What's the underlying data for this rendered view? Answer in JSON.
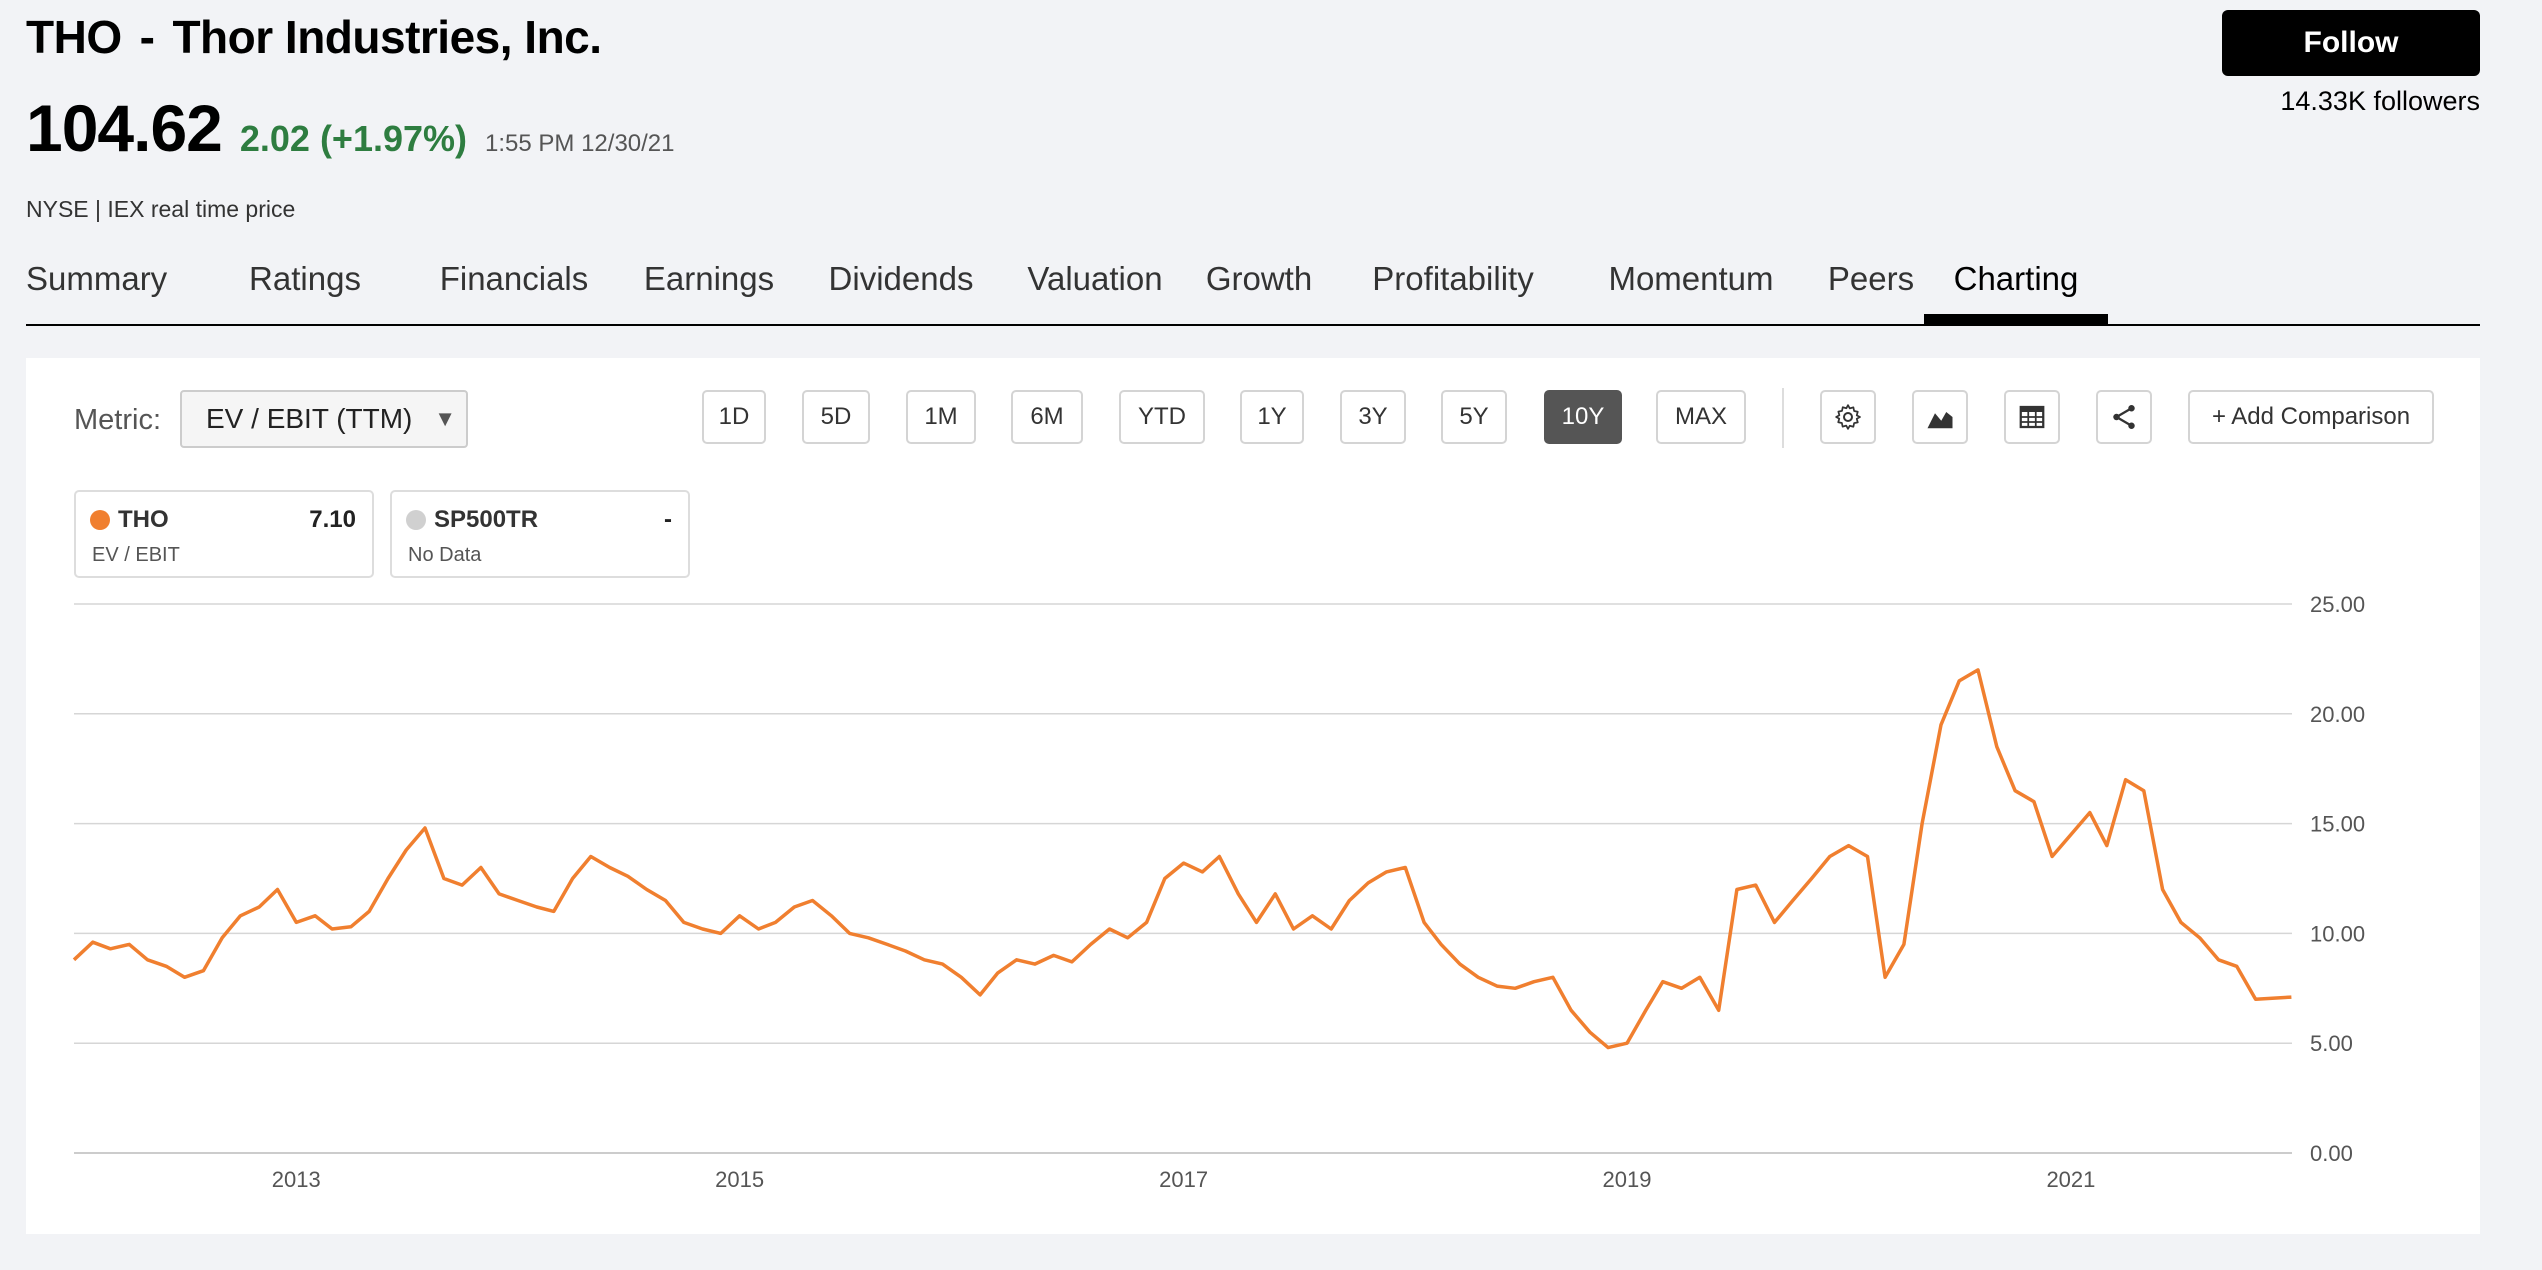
{
  "header": {
    "ticker": "THO",
    "separator": "-",
    "company": "Thor Industries, Inc.",
    "price": "104.62",
    "change": "2.02 (+1.97%)",
    "timestamp": "1:55 PM 12/30/21",
    "exchange": "NYSE | IEX real time price",
    "follow_label": "Follow",
    "followers": "14.33K followers"
  },
  "tabs": [
    {
      "label": "Summary"
    },
    {
      "label": "Ratings"
    },
    {
      "label": "Financials"
    },
    {
      "label": "Earnings"
    },
    {
      "label": "Dividends"
    },
    {
      "label": "Valuation"
    },
    {
      "label": "Growth"
    },
    {
      "label": "Profitability"
    },
    {
      "label": "Momentum"
    },
    {
      "label": "Peers"
    },
    {
      "label": "Charting",
      "active": true
    }
  ],
  "toolbar": {
    "metric_label": "Metric:",
    "metric_value": "EV / EBIT (TTM)",
    "ranges": [
      "1D",
      "5D",
      "1M",
      "6M",
      "YTD",
      "1Y",
      "3Y",
      "5Y",
      "10Y",
      "MAX"
    ],
    "active_range": "10Y",
    "icons": [
      "gear-icon",
      "area-chart-icon",
      "table-icon",
      "share-icon"
    ],
    "add_comparison": "+ Add Comparison"
  },
  "legend": [
    {
      "name": "THO",
      "value": "7.10",
      "sub": "EV / EBIT",
      "color": "#f07f2f"
    },
    {
      "name": "SP500TR",
      "value": "-",
      "sub": "No Data",
      "color": "#d0d0d0"
    }
  ],
  "chart_data": {
    "type": "line",
    "series": [
      {
        "name": "THO",
        "color": "#f07f2f",
        "points": [
          [
            "2012-01-01",
            8.8
          ],
          [
            "2012-02-01",
            9.6
          ],
          [
            "2012-03-01",
            9.3
          ],
          [
            "2012-04-01",
            9.5
          ],
          [
            "2012-05-01",
            8.8
          ],
          [
            "2012-06-01",
            8.5
          ],
          [
            "2012-07-01",
            8.0
          ],
          [
            "2012-08-01",
            8.3
          ],
          [
            "2012-09-01",
            9.8
          ],
          [
            "2012-10-01",
            10.8
          ],
          [
            "2012-11-01",
            11.2
          ],
          [
            "2012-12-01",
            12.0
          ],
          [
            "2013-01-01",
            10.5
          ],
          [
            "2013-02-01",
            10.8
          ],
          [
            "2013-03-01",
            10.2
          ],
          [
            "2013-04-01",
            10.3
          ],
          [
            "2013-05-01",
            11.0
          ],
          [
            "2013-06-01",
            12.5
          ],
          [
            "2013-07-01",
            13.8
          ],
          [
            "2013-08-01",
            14.8
          ],
          [
            "2013-09-01",
            12.5
          ],
          [
            "2013-10-01",
            12.2
          ],
          [
            "2013-11-01",
            13.0
          ],
          [
            "2013-12-01",
            11.8
          ],
          [
            "2014-01-01",
            11.5
          ],
          [
            "2014-02-01",
            11.2
          ],
          [
            "2014-03-01",
            11.0
          ],
          [
            "2014-04-01",
            12.5
          ],
          [
            "2014-05-01",
            13.5
          ],
          [
            "2014-06-01",
            13.0
          ],
          [
            "2014-07-01",
            12.6
          ],
          [
            "2014-08-01",
            12.0
          ],
          [
            "2014-09-01",
            11.5
          ],
          [
            "2014-10-01",
            10.5
          ],
          [
            "2014-11-01",
            10.2
          ],
          [
            "2014-12-01",
            10.0
          ],
          [
            "2015-01-01",
            10.8
          ],
          [
            "2015-02-01",
            10.2
          ],
          [
            "2015-03-01",
            10.5
          ],
          [
            "2015-04-01",
            11.2
          ],
          [
            "2015-05-01",
            11.5
          ],
          [
            "2015-06-01",
            10.8
          ],
          [
            "2015-07-01",
            10.0
          ],
          [
            "2015-08-01",
            9.8
          ],
          [
            "2015-09-01",
            9.5
          ],
          [
            "2015-10-01",
            9.2
          ],
          [
            "2015-11-01",
            8.8
          ],
          [
            "2015-12-01",
            8.6
          ],
          [
            "2016-01-01",
            8.0
          ],
          [
            "2016-02-01",
            7.2
          ],
          [
            "2016-03-01",
            8.2
          ],
          [
            "2016-04-01",
            8.8
          ],
          [
            "2016-05-01",
            8.6
          ],
          [
            "2016-06-01",
            9.0
          ],
          [
            "2016-07-01",
            8.7
          ],
          [
            "2016-08-01",
            9.5
          ],
          [
            "2016-09-01",
            10.2
          ],
          [
            "2016-10-01",
            9.8
          ],
          [
            "2016-11-01",
            10.5
          ],
          [
            "2016-12-01",
            12.5
          ],
          [
            "2017-01-01",
            13.2
          ],
          [
            "2017-02-01",
            12.8
          ],
          [
            "2017-03-01",
            13.5
          ],
          [
            "2017-04-01",
            11.8
          ],
          [
            "2017-05-01",
            10.5
          ],
          [
            "2017-06-01",
            11.8
          ],
          [
            "2017-07-01",
            10.2
          ],
          [
            "2017-08-01",
            10.8
          ],
          [
            "2017-09-01",
            10.2
          ],
          [
            "2017-10-01",
            11.5
          ],
          [
            "2017-11-01",
            12.3
          ],
          [
            "2017-12-01",
            12.8
          ],
          [
            "2018-01-01",
            13.0
          ],
          [
            "2018-02-01",
            10.5
          ],
          [
            "2018-03-01",
            9.5
          ],
          [
            "2018-04-01",
            8.6
          ],
          [
            "2018-05-01",
            8.0
          ],
          [
            "2018-06-01",
            7.6
          ],
          [
            "2018-07-01",
            7.5
          ],
          [
            "2018-08-01",
            7.8
          ],
          [
            "2018-09-01",
            8.0
          ],
          [
            "2018-10-01",
            6.5
          ],
          [
            "2018-11-01",
            5.5
          ],
          [
            "2018-12-01",
            4.8
          ],
          [
            "2019-01-01",
            5.0
          ],
          [
            "2019-02-01",
            6.5
          ],
          [
            "2019-03-01",
            7.8
          ],
          [
            "2019-04-01",
            7.5
          ],
          [
            "2019-05-01",
            8.0
          ],
          [
            "2019-06-01",
            6.5
          ],
          [
            "2019-07-01",
            12.0
          ],
          [
            "2019-08-01",
            12.2
          ],
          [
            "2019-09-01",
            10.5
          ],
          [
            "2019-10-01",
            11.5
          ],
          [
            "2019-11-01",
            12.5
          ],
          [
            "2019-12-01",
            13.5
          ],
          [
            "2020-01-01",
            14.0
          ],
          [
            "2020-02-01",
            13.5
          ],
          [
            "2020-03-01",
            8.0
          ],
          [
            "2020-04-01",
            9.5
          ],
          [
            "2020-05-01",
            15.0
          ],
          [
            "2020-06-01",
            19.5
          ],
          [
            "2020-07-01",
            21.5
          ],
          [
            "2020-08-01",
            22.0
          ],
          [
            "2020-09-01",
            18.5
          ],
          [
            "2020-10-01",
            16.5
          ],
          [
            "2020-11-01",
            16.0
          ],
          [
            "2020-12-01",
            13.5
          ],
          [
            "2021-01-01",
            14.5
          ],
          [
            "2021-02-01",
            15.5
          ],
          [
            "2021-03-01",
            14.0
          ],
          [
            "2021-04-01",
            17.0
          ],
          [
            "2021-05-01",
            16.5
          ],
          [
            "2021-06-01",
            12.0
          ],
          [
            "2021-07-01",
            10.5
          ],
          [
            "2021-08-01",
            9.8
          ],
          [
            "2021-09-01",
            8.8
          ],
          [
            "2021-10-01",
            8.5
          ],
          [
            "2021-11-01",
            7.0
          ],
          [
            "2021-12-30",
            7.1
          ]
        ]
      }
    ],
    "x_ticks": [
      "2013",
      "2015",
      "2017",
      "2019",
      "2021"
    ],
    "y_ticks": [
      "0.00",
      "5.00",
      "10.00",
      "15.00",
      "20.00",
      "25.00"
    ],
    "ylim": [
      0,
      25
    ],
    "xlim": [
      "2012-01-01",
      "2021-12-31"
    ],
    "grid": true
  }
}
